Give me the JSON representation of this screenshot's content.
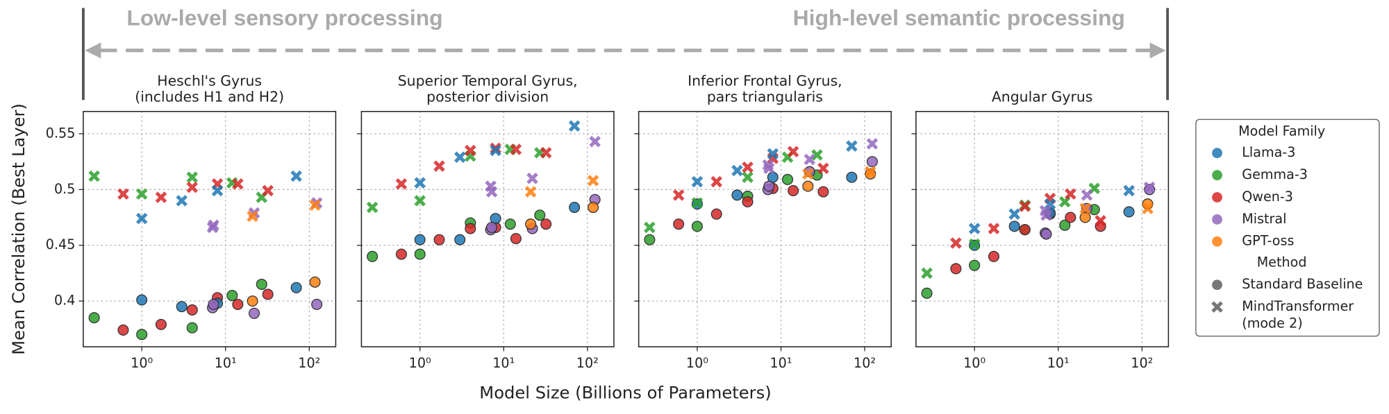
{
  "annotations": {
    "left": "Low-level sensory processing",
    "right": "High-level semantic processing"
  },
  "xlabel": "Model Size (Billions of Parameters)",
  "legend": {
    "family_title": "Model Family",
    "families": [
      {
        "name": "Llama-3",
        "color": "#1f77b4"
      },
      {
        "name": "Gemma-3",
        "color": "#2ca02c"
      },
      {
        "name": "Qwen-3",
        "color": "#d62728"
      },
      {
        "name": "Mistral",
        "color": "#9467bd"
      },
      {
        "name": "GPT-oss",
        "color": "#ff7f0e"
      }
    ],
    "method_title": "Method",
    "methods": [
      {
        "name": [
          "Standard Baseline"
        ],
        "marker": "o"
      },
      {
        "name": [
          "MindTransformer",
          "(mode 2)"
        ],
        "marker": "X"
      }
    ]
  },
  "chart_data": [
    {
      "type": "scatter",
      "title": [
        "Heschl's Gyrus",
        "(includes H1 and H2)"
      ],
      "ylabel": "Mean Correlation (Best Layer)",
      "xscale": "log",
      "xlim": [
        0.2,
        207
      ],
      "xticks": [
        {
          "value": 1,
          "label": "10⁰"
        },
        {
          "value": 10,
          "label": "10¹"
        },
        {
          "value": 100,
          "label": "10²"
        }
      ],
      "ylim": [
        0.359,
        0.57
      ],
      "yticks": [
        0.4,
        0.45,
        0.5,
        0.55
      ],
      "grid": true,
      "series": [
        {
          "color": "#2ca02c",
          "marker": "o",
          "x": [
            0.27,
            1,
            4,
            12,
            27
          ],
          "values": [
            0.385,
            0.37,
            0.376,
            0.405,
            0.415
          ]
        },
        {
          "color": "#d62728",
          "marker": "o",
          "x": [
            0.6,
            1.7,
            4,
            8,
            14,
            32
          ],
          "values": [
            0.374,
            0.379,
            0.392,
            0.403,
            0.397,
            0.406
          ]
        },
        {
          "color": "#1f77b4",
          "marker": "o",
          "x": [
            1,
            3,
            8,
            70
          ],
          "values": [
            0.401,
            0.395,
            0.398,
            0.412
          ]
        },
        {
          "color": "#9467bd",
          "marker": "o",
          "x": [
            7,
            7.2,
            22,
            123
          ],
          "values": [
            0.394,
            0.397,
            0.389,
            0.397
          ]
        },
        {
          "color": "#ff7f0e",
          "marker": "o",
          "x": [
            21,
            117
          ],
          "values": [
            0.4,
            0.417
          ]
        },
        {
          "color": "#2ca02c",
          "marker": "X",
          "x": [
            0.27,
            1,
            4,
            12,
            27
          ],
          "values": [
            0.512,
            0.496,
            0.511,
            0.506,
            0.493
          ]
        },
        {
          "color": "#d62728",
          "marker": "X",
          "x": [
            0.6,
            1.7,
            4,
            8,
            14,
            32
          ],
          "values": [
            0.496,
            0.493,
            0.502,
            0.505,
            0.505,
            0.499
          ]
        },
        {
          "color": "#1f77b4",
          "marker": "X",
          "x": [
            1,
            3,
            8,
            70
          ],
          "values": [
            0.474,
            0.49,
            0.499,
            0.512
          ]
        },
        {
          "color": "#9467bd",
          "marker": "X",
          "x": [
            7,
            7.2,
            22,
            123
          ],
          "values": [
            0.466,
            0.468,
            0.479,
            0.488
          ]
        },
        {
          "color": "#ff7f0e",
          "marker": "X",
          "x": [
            21,
            117
          ],
          "values": [
            0.476,
            0.486
          ]
        }
      ]
    },
    {
      "type": "scatter",
      "title": [
        "Superior Temporal Gyrus,",
        "posterior division"
      ],
      "xscale": "log",
      "xlim": [
        0.2,
        207
      ],
      "xticks": [
        {
          "value": 1,
          "label": "10⁰"
        },
        {
          "value": 10,
          "label": "10¹"
        },
        {
          "value": 100,
          "label": "10²"
        }
      ],
      "ylim": [
        0.359,
        0.57
      ],
      "yticks": [
        0.4,
        0.45,
        0.5,
        0.55
      ],
      "grid": true,
      "series": [
        {
          "color": "#2ca02c",
          "marker": "o",
          "x": [
            0.27,
            1,
            4,
            12,
            27
          ],
          "values": [
            0.44,
            0.442,
            0.47,
            0.469,
            0.477
          ]
        },
        {
          "color": "#d62728",
          "marker": "o",
          "x": [
            0.6,
            1.7,
            4,
            8,
            14,
            32
          ],
          "values": [
            0.442,
            0.455,
            0.465,
            0.466,
            0.456,
            0.469
          ]
        },
        {
          "color": "#1f77b4",
          "marker": "o",
          "x": [
            1,
            3,
            8,
            70
          ],
          "values": [
            0.455,
            0.455,
            0.474,
            0.484
          ]
        },
        {
          "color": "#9467bd",
          "marker": "o",
          "x": [
            7,
            7.2,
            22,
            123
          ],
          "values": [
            0.464,
            0.466,
            0.465,
            0.491
          ]
        },
        {
          "color": "#ff7f0e",
          "marker": "o",
          "x": [
            21,
            117
          ],
          "values": [
            0.469,
            0.484
          ]
        },
        {
          "color": "#2ca02c",
          "marker": "X",
          "x": [
            0.27,
            1,
            4,
            12,
            27
          ],
          "values": [
            0.484,
            0.49,
            0.53,
            0.536,
            0.533
          ]
        },
        {
          "color": "#d62728",
          "marker": "X",
          "x": [
            0.6,
            1.7,
            4,
            8,
            14,
            32
          ],
          "values": [
            0.505,
            0.521,
            0.535,
            0.537,
            0.536,
            0.533
          ]
        },
        {
          "color": "#1f77b4",
          "marker": "X",
          "x": [
            1,
            3,
            8,
            70
          ],
          "values": [
            0.506,
            0.529,
            0.535,
            0.557
          ]
        },
        {
          "color": "#9467bd",
          "marker": "X",
          "x": [
            7,
            7.2,
            22,
            123
          ],
          "values": [
            0.503,
            0.498,
            0.51,
            0.543
          ]
        },
        {
          "color": "#ff7f0e",
          "marker": "X",
          "x": [
            21,
            117
          ],
          "values": [
            0.498,
            0.508
          ]
        }
      ]
    },
    {
      "type": "scatter",
      "title": [
        "Inferior Frontal Gyrus,",
        "pars triangularis"
      ],
      "xscale": "log",
      "xlim": [
        0.2,
        207
      ],
      "xticks": [
        {
          "value": 1,
          "label": "10⁰"
        },
        {
          "value": 10,
          "label": "10¹"
        },
        {
          "value": 100,
          "label": "10²"
        }
      ],
      "ylim": [
        0.359,
        0.57
      ],
      "yticks": [
        0.4,
        0.45,
        0.5,
        0.55
      ],
      "grid": true,
      "series": [
        {
          "color": "#2ca02c",
          "marker": "o",
          "x": [
            0.27,
            1,
            4,
            12,
            27
          ],
          "values": [
            0.455,
            0.467,
            0.494,
            0.509,
            0.513
          ]
        },
        {
          "color": "#d62728",
          "marker": "o",
          "x": [
            0.6,
            1.7,
            4,
            8,
            14,
            32
          ],
          "values": [
            0.469,
            0.478,
            0.489,
            0.501,
            0.499,
            0.498
          ]
        },
        {
          "color": "#1f77b4",
          "marker": "o",
          "x": [
            1,
            3,
            8,
            70
          ],
          "values": [
            0.487,
            0.495,
            0.511,
            0.511
          ]
        },
        {
          "color": "#9467bd",
          "marker": "o",
          "x": [
            7,
            7.2,
            22,
            123
          ],
          "values": [
            0.5,
            0.503,
            0.516,
            0.525
          ]
        },
        {
          "color": "#ff7f0e",
          "marker": "o",
          "x": [
            21,
            117
          ],
          "values": [
            0.503,
            0.514
          ]
        },
        {
          "color": "#2ca02c",
          "marker": "X",
          "x": [
            0.27,
            1,
            4,
            12,
            27
          ],
          "values": [
            0.466,
            0.488,
            0.511,
            0.529,
            0.531
          ]
        },
        {
          "color": "#d62728",
          "marker": "X",
          "x": [
            0.6,
            1.7,
            4,
            8,
            14,
            32
          ],
          "values": [
            0.495,
            0.507,
            0.52,
            0.528,
            0.534,
            0.519
          ]
        },
        {
          "color": "#1f77b4",
          "marker": "X",
          "x": [
            1,
            3,
            8,
            70
          ],
          "values": [
            0.507,
            0.517,
            0.532,
            0.539
          ]
        },
        {
          "color": "#9467bd",
          "marker": "X",
          "x": [
            7,
            7.2,
            22,
            123
          ],
          "values": [
            0.522,
            0.519,
            0.527,
            0.541
          ]
        },
        {
          "color": "#ff7f0e",
          "marker": "X",
          "x": [
            21,
            117
          ],
          "values": [
            0.514,
            0.516
          ]
        }
      ]
    },
    {
      "type": "scatter",
      "title": [
        "Angular Gyrus"
      ],
      "xscale": "log",
      "xlim": [
        0.2,
        207
      ],
      "xticks": [
        {
          "value": 1,
          "label": "10⁰"
        },
        {
          "value": 10,
          "label": "10¹"
        },
        {
          "value": 100,
          "label": "10²"
        }
      ],
      "ylim": [
        0.359,
        0.57
      ],
      "yticks": [
        0.4,
        0.45,
        0.5,
        0.55
      ],
      "grid": true,
      "series": [
        {
          "color": "#2ca02c",
          "marker": "o",
          "x": [
            0.27,
            1,
            4,
            12,
            27
          ],
          "values": [
            0.407,
            0.432,
            0.464,
            0.468,
            0.482
          ]
        },
        {
          "color": "#d62728",
          "marker": "o",
          "x": [
            0.6,
            1.7,
            4,
            8,
            14,
            32
          ],
          "values": [
            0.429,
            0.44,
            0.464,
            0.478,
            0.475,
            0.467
          ]
        },
        {
          "color": "#1f77b4",
          "marker": "o",
          "x": [
            1,
            3,
            8,
            70
          ],
          "values": [
            0.45,
            0.467,
            0.479,
            0.48
          ]
        },
        {
          "color": "#9467bd",
          "marker": "o",
          "x": [
            7,
            7.2,
            22,
            123
          ],
          "values": [
            0.461,
            0.46,
            0.483,
            0.5
          ]
        },
        {
          "color": "#ff7f0e",
          "marker": "o",
          "x": [
            21,
            117
          ],
          "values": [
            0.475,
            0.487
          ]
        },
        {
          "color": "#2ca02c",
          "marker": "X",
          "x": [
            0.27,
            1,
            4,
            12,
            27
          ],
          "values": [
            0.425,
            0.451,
            0.486,
            0.489,
            0.501
          ]
        },
        {
          "color": "#d62728",
          "marker": "X",
          "x": [
            0.6,
            1.7,
            4,
            8,
            14,
            32
          ],
          "values": [
            0.452,
            0.465,
            0.485,
            0.492,
            0.496,
            0.472
          ]
        },
        {
          "color": "#1f77b4",
          "marker": "X",
          "x": [
            1,
            3,
            8,
            70
          ],
          "values": [
            0.465,
            0.478,
            0.487,
            0.499
          ]
        },
        {
          "color": "#9467bd",
          "marker": "X",
          "x": [
            7,
            7.2,
            22,
            123
          ],
          "values": [
            0.481,
            0.477,
            0.495,
            0.502
          ]
        },
        {
          "color": "#ff7f0e",
          "marker": "X",
          "x": [
            21,
            117
          ],
          "values": [
            0.483,
            0.483
          ]
        }
      ]
    }
  ]
}
